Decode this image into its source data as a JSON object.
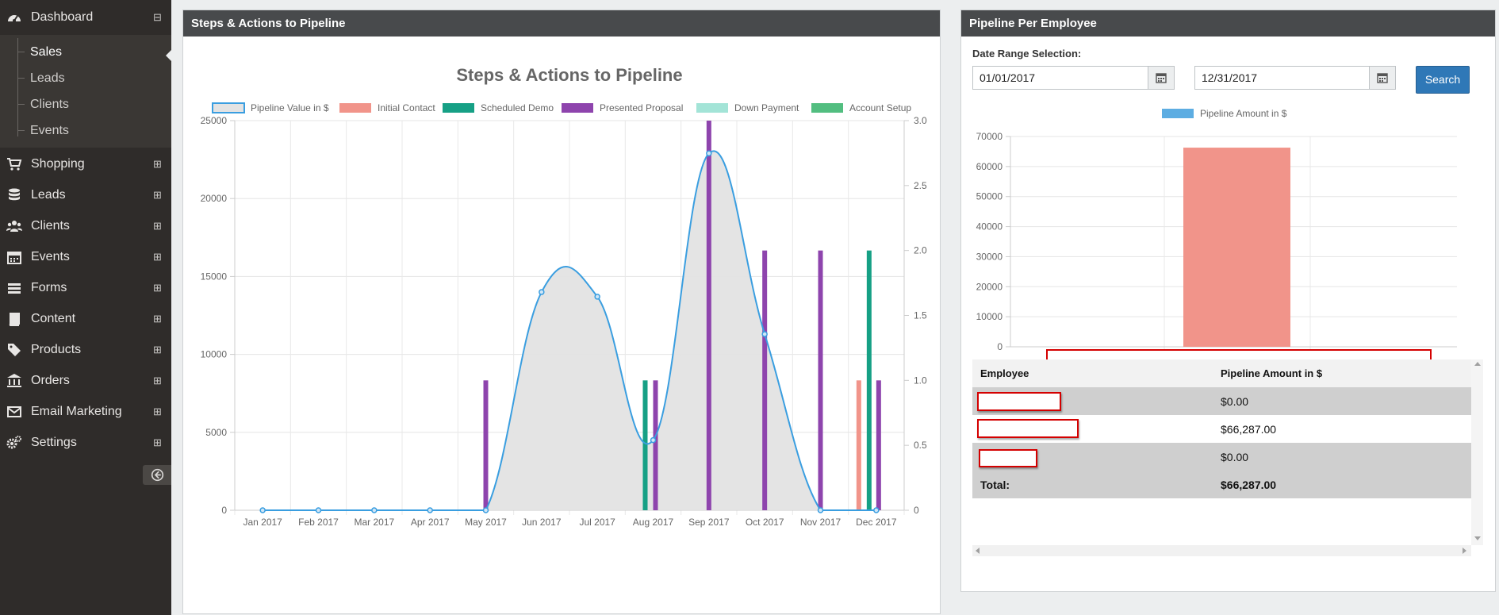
{
  "sidebar": {
    "dashboard": "Dashboard",
    "sub_items": [
      "Sales",
      "Leads",
      "Clients",
      "Events"
    ],
    "items": [
      {
        "label": "Shopping",
        "icon": "cart-icon"
      },
      {
        "label": "Leads",
        "icon": "database-icon"
      },
      {
        "label": "Clients",
        "icon": "users-icon"
      },
      {
        "label": "Events",
        "icon": "calendar-icon"
      },
      {
        "label": "Forms",
        "icon": "list-icon"
      },
      {
        "label": "Content",
        "icon": "book-icon"
      },
      {
        "label": "Products",
        "icon": "tags-icon"
      },
      {
        "label": "Orders",
        "icon": "bank-icon"
      },
      {
        "label": "Email Marketing",
        "icon": "envelope-icon"
      },
      {
        "label": "Settings",
        "icon": "gears-icon"
      }
    ],
    "collapse_icon": "arrow-circle-left-icon",
    "expand_symbol": "⊞",
    "collapse_symbol": "⊟"
  },
  "panel1": {
    "title": "Steps & Actions to Pipeline"
  },
  "panel2": {
    "title": "Pipeline Per Employee",
    "date_label": "Date Range Selection:",
    "start_date": "01/01/2017",
    "end_date": "12/31/2017",
    "search_label": "Search",
    "table": {
      "headers": [
        "Employee",
        "Pipeline Amount in $"
      ],
      "rows": [
        {
          "employee": "",
          "amount": "$0.00"
        },
        {
          "employee": "",
          "amount": "$66,287.00"
        },
        {
          "employee": "",
          "amount": "$0.00"
        }
      ],
      "total_label": "Total:",
      "total_value": "$66,287.00"
    }
  },
  "chart_data": [
    {
      "type": "bar",
      "title": "Steps & Actions to Pipeline",
      "categories": [
        "Jan 2017",
        "Feb 2017",
        "Mar 2017",
        "Apr 2017",
        "May 2017",
        "Jun 2017",
        "Jul 2017",
        "Aug 2017",
        "Sep 2017",
        "Oct 2017",
        "Nov 2017",
        "Dec 2017"
      ],
      "y_left_ticks": [
        "0",
        "5000",
        "10000",
        "15000",
        "20000",
        "25000"
      ],
      "y_left_range": [
        0,
        25000
      ],
      "y_right_ticks": [
        "0",
        "0.5",
        "1.0",
        "1.5",
        "2.0",
        "2.5",
        "3.0"
      ],
      "y_right_range": [
        0,
        3
      ],
      "grid": true,
      "legend_position": "top",
      "line_series": {
        "name": "Pipeline Value in $",
        "type": "area",
        "axis": "left",
        "color": "#3a9ee0",
        "fill": "#e3e3e3",
        "values": [
          0,
          0,
          0,
          0,
          0,
          14000,
          13700,
          4500,
          22900,
          11300,
          0,
          0
        ]
      },
      "series": [
        {
          "name": "Initial Contact",
          "color": "#f1948a",
          "axis": "right",
          "values": [
            0,
            0,
            0,
            0,
            0,
            0,
            0,
            0,
            0,
            0,
            0,
            1
          ]
        },
        {
          "name": "Scheduled Demo",
          "color": "#16a085",
          "axis": "right",
          "values": [
            0,
            0,
            0,
            0,
            0,
            0,
            0,
            1,
            0,
            0,
            0,
            2
          ]
        },
        {
          "name": "Presented Proposal",
          "color": "#8e44ad",
          "axis": "right",
          "values": [
            0,
            0,
            0,
            0,
            1,
            0,
            0,
            1,
            3,
            2,
            2,
            1
          ]
        },
        {
          "name": "Down Payment",
          "color": "#a3e4d7",
          "axis": "right",
          "values": [
            0,
            0,
            0,
            0,
            0,
            0,
            0,
            0,
            0,
            0,
            0,
            0
          ]
        },
        {
          "name": "Account Setup",
          "color": "#52be80",
          "axis": "right",
          "values": [
            0,
            0,
            0,
            0,
            0,
            0,
            0,
            0,
            0,
            0,
            0,
            0
          ]
        }
      ]
    },
    {
      "type": "bar",
      "title": "",
      "categories": [
        ""
      ],
      "series": [
        {
          "name": "Pipeline Amount in $",
          "values": [
            66287
          ],
          "color": "#f1948a"
        }
      ],
      "legend_color": "#5dade2",
      "y_ticks": [
        "0",
        "10000",
        "20000",
        "30000",
        "40000",
        "50000",
        "60000",
        "70000"
      ],
      "ylim": [
        0,
        70000
      ],
      "legend_position": "top",
      "grid": true
    }
  ]
}
